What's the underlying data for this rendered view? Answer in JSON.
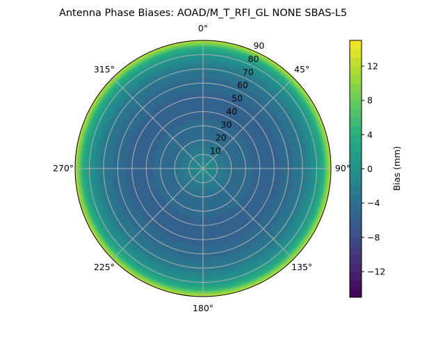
{
  "chart_data": {
    "type": "heatmap",
    "subtype": "polar-contour",
    "title": "Antenna Phase Biases: AOAD/M_T_RFI_GL NONE SBAS-L5",
    "colormap": "viridis",
    "angular_ticks": [
      "0°",
      "45°",
      "90°",
      "135°",
      "180°",
      "225°",
      "270°",
      "315°"
    ],
    "radial_ticks": [
      "10",
      "20",
      "30",
      "40",
      "50",
      "60",
      "70",
      "80",
      "90"
    ],
    "radial_range": [
      0,
      90
    ],
    "grid": true,
    "colorbar": {
      "label": "Bias (mm)",
      "range": [
        -15,
        15
      ],
      "level_step": 1,
      "ticks": [
        "12",
        "8",
        "4",
        "0",
        "−4",
        "−8",
        "−12"
      ],
      "tick_values": [
        12,
        8,
        4,
        0,
        -4,
        -8,
        -12
      ]
    },
    "zenith": [
      0,
      5,
      10,
      15,
      20,
      25,
      30,
      35,
      40,
      45,
      50,
      55,
      60,
      65,
      70,
      75,
      80,
      85,
      90
    ],
    "bias_mm": [
      -0.5,
      -1,
      -2,
      -3,
      -4,
      -4.5,
      -5,
      -5,
      -5.3,
      -5.3,
      -5.2,
      -5,
      -4.5,
      -3.8,
      -2.8,
      -1.5,
      0.5,
      4,
      12
    ]
  }
}
